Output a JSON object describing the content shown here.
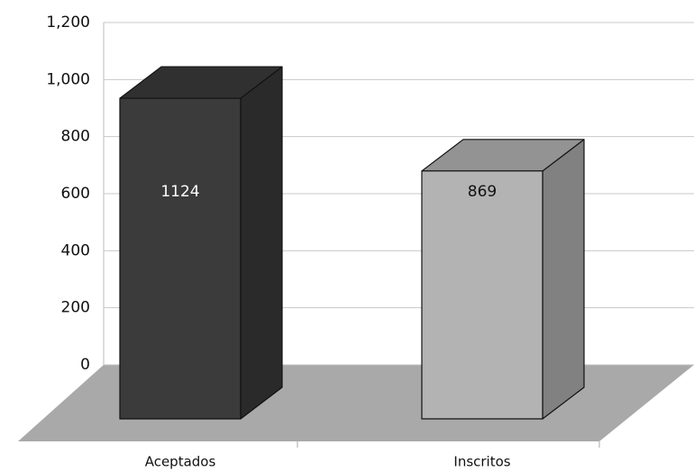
{
  "chart_data": {
    "type": "bar3d",
    "categories": [
      "Aceptados",
      "Inscritos"
    ],
    "values": [
      1124,
      869
    ],
    "colors": [
      "#3b3b3b",
      "#b3b3b3"
    ],
    "ylim": [
      0,
      1200
    ],
    "yticks": [
      0,
      200,
      400,
      600,
      800,
      {
        "value": 1000,
        "label": "1,000"
      },
      {
        "value": 1200,
        "label": "1,200"
      }
    ],
    "grid": true
  }
}
